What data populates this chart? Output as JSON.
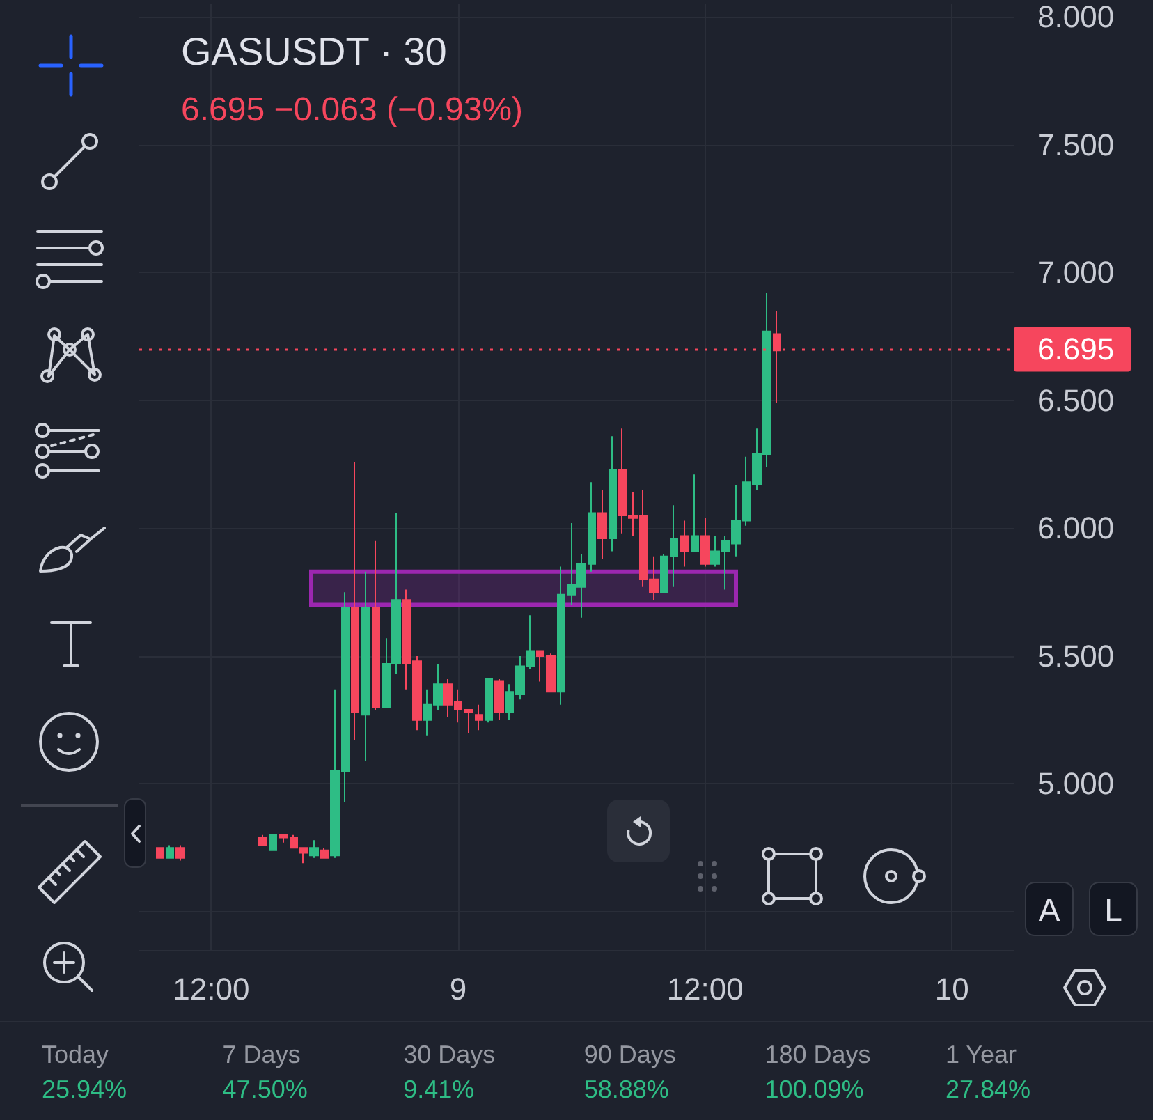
{
  "chart_data": {
    "type": "candlestick",
    "title": "GASUSDT · 30",
    "subtitle": "6.695 −0.063 (−0.93%)",
    "categories": [
      null,
      null,
      null,
      null,
      null,
      null,
      null,
      "12:00",
      null,
      null,
      null,
      null,
      null,
      null,
      null,
      null,
      null,
      null,
      null,
      null,
      null,
      null,
      null,
      null,
      null,
      null,
      null,
      null,
      null,
      null,
      null,
      "9",
      null,
      null,
      null,
      null,
      null,
      null,
      null,
      null,
      null,
      null,
      null,
      null,
      null,
      null,
      null,
      null,
      null,
      null,
      null,
      null,
      null,
      null,
      null,
      "12:00",
      null,
      null,
      null,
      null,
      null,
      null,
      null,
      null,
      null,
      null,
      null,
      null,
      null,
      null,
      null,
      null,
      null,
      null,
      null,
      null,
      null,
      null,
      null,
      "10",
      null,
      null,
      null,
      null,
      null,
      null
    ],
    "ohlc": [
      null,
      null,
      [
        4.75,
        4.75,
        4.71,
        4.71
      ],
      [
        4.71,
        4.76,
        4.71,
        4.75
      ],
      [
        4.75,
        4.76,
        4.7,
        4.71
      ],
      null,
      null,
      null,
      null,
      null,
      null,
      null,
      [
        4.79,
        4.8,
        4.76,
        4.76
      ],
      [
        4.74,
        4.8,
        4.74,
        4.8
      ],
      [
        4.8,
        4.8,
        4.77,
        4.79
      ],
      [
        4.79,
        4.8,
        4.75,
        4.75
      ],
      [
        4.75,
        4.75,
        4.69,
        4.73
      ],
      [
        4.72,
        4.78,
        4.71,
        4.75
      ],
      [
        4.74,
        4.75,
        4.71,
        4.71
      ],
      [
        4.72,
        5.37,
        4.71,
        5.05
      ],
      [
        5.05,
        5.75,
        4.93,
        5.69
      ],
      [
        5.69,
        6.26,
        5.17,
        5.28
      ],
      [
        5.27,
        5.83,
        5.09,
        5.69
      ],
      [
        5.69,
        5.95,
        5.29,
        5.3
      ],
      [
        5.3,
        5.57,
        5.3,
        5.47
      ],
      [
        5.47,
        6.06,
        5.43,
        5.72
      ],
      [
        5.72,
        5.76,
        5.37,
        5.47
      ],
      [
        5.48,
        5.5,
        5.21,
        5.25
      ],
      [
        5.25,
        5.37,
        5.19,
        5.31
      ],
      [
        5.31,
        5.47,
        5.29,
        5.39
      ],
      [
        5.39,
        5.41,
        5.26,
        5.31
      ],
      [
        5.32,
        5.37,
        5.24,
        5.29
      ],
      [
        5.29,
        5.29,
        5.2,
        5.28
      ],
      [
        5.27,
        5.31,
        5.21,
        5.25
      ],
      [
        5.25,
        5.41,
        5.24,
        5.41
      ],
      [
        5.4,
        5.41,
        5.25,
        5.28
      ],
      [
        5.28,
        5.39,
        5.25,
        5.36
      ],
      [
        5.35,
        5.5,
        5.33,
        5.46
      ],
      [
        5.46,
        5.66,
        5.45,
        5.52
      ],
      [
        5.52,
        5.52,
        5.4,
        5.5
      ],
      [
        5.5,
        5.51,
        5.36,
        5.36
      ],
      [
        5.36,
        5.85,
        5.31,
        5.74
      ],
      [
        5.74,
        6.02,
        5.7,
        5.78
      ],
      [
        5.77,
        5.9,
        5.65,
        5.86
      ],
      [
        5.86,
        6.18,
        5.83,
        6.06
      ],
      [
        6.06,
        6.15,
        5.88,
        5.96
      ],
      [
        5.96,
        6.36,
        5.91,
        6.23
      ],
      [
        6.23,
        6.39,
        5.98,
        6.05
      ],
      [
        6.05,
        6.14,
        5.97,
        6.04
      ],
      [
        6.05,
        6.15,
        5.77,
        5.8
      ],
      [
        5.8,
        5.89,
        5.72,
        5.75
      ],
      [
        5.75,
        5.9,
        5.75,
        5.89
      ],
      [
        5.89,
        6.09,
        5.77,
        5.96
      ],
      [
        5.97,
        6.03,
        5.85,
        5.91
      ],
      [
        5.91,
        6.21,
        5.91,
        5.97
      ],
      [
        5.97,
        6.04,
        5.85,
        5.86
      ],
      [
        5.86,
        5.97,
        5.85,
        5.91
      ],
      [
        5.91,
        5.97,
        5.76,
        5.95
      ],
      [
        5.94,
        6.17,
        5.89,
        6.03
      ],
      [
        6.03,
        6.28,
        6.01,
        6.18
      ],
      [
        6.17,
        6.39,
        6.15,
        6.29
      ],
      [
        6.29,
        6.92,
        6.24,
        6.77
      ],
      [
        6.76,
        6.85,
        6.49,
        6.695
      ],
      null,
      null,
      null,
      null,
      null,
      null,
      null,
      null,
      null,
      null,
      null,
      null,
      null,
      null,
      null,
      null,
      null,
      null,
      null,
      null,
      null,
      null,
      null
    ],
    "colors": [
      null,
      null,
      "#f6465d",
      "#2ebd85",
      "#f6465d",
      null,
      null,
      null,
      null,
      null,
      null,
      null,
      "#f6465d",
      "#2ebd85",
      "#f6465d",
      "#f6465d",
      "#f6465d",
      "#2ebd85",
      "#f6465d",
      "#2ebd85",
      "#2ebd85",
      "#f6465d",
      "#2ebd85",
      "#f6465d",
      "#2ebd85",
      "#2ebd85",
      "#f6465d",
      "#f6465d",
      "#2ebd85",
      "#2ebd85",
      "#f6465d",
      "#f6465d",
      "#f6465d",
      "#f6465d",
      "#2ebd85",
      "#f6465d",
      "#2ebd85",
      "#2ebd85",
      "#2ebd85",
      "#f6465d",
      "#f6465d",
      "#2ebd85",
      "#2ebd85",
      "#2ebd85",
      "#2ebd85",
      "#f6465d",
      "#2ebd85",
      "#f6465d",
      "#f6465d",
      "#f6465d",
      "#f6465d",
      "#2ebd85",
      "#2ebd85",
      "#f6465d",
      "#2ebd85",
      "#f6465d",
      "#2ebd85",
      "#2ebd85",
      "#2ebd85",
      "#2ebd85",
      "#2ebd85",
      "#2ebd85",
      "#f6465d",
      null,
      null,
      null,
      null,
      null,
      null,
      null,
      null,
      null,
      null,
      null,
      null,
      null,
      null,
      null,
      null,
      null,
      null,
      null,
      null,
      null,
      null,
      null
    ],
    "ylim": [
      4.35,
      8.05
    ],
    "yticks": [
      {
        "value": 4.5,
        "label": null
      },
      {
        "value": 5,
        "label": "5.000"
      },
      {
        "value": 5.5,
        "label": "5.500"
      },
      {
        "value": 6,
        "label": "6.000"
      },
      {
        "value": 6.5,
        "label": "6.500"
      },
      {
        "value": 7,
        "label": "7.000"
      },
      {
        "value": 7.5,
        "label": "7.500"
      },
      {
        "value": 8,
        "label": "8.000"
      }
    ],
    "grid": true,
    "ref_lines": [
      {
        "axis": "y",
        "value": 6.695,
        "label": "6.695",
        "color": "#f6465d",
        "line_style": "dotted"
      }
    ],
    "bands": [
      {
        "axis": "y",
        "from": 5.7,
        "to": 5.83,
        "color": "#9c27b0"
      }
    ],
    "annotations": [
      "Today",
      "25.94%",
      "7 Days",
      "47.50%",
      "30 Days",
      "9.41%",
      "90 Days",
      "58.88%",
      "180 Days",
      "100.09%",
      "1 Year",
      "27.84%",
      "A",
      "L"
    ]
  }
}
